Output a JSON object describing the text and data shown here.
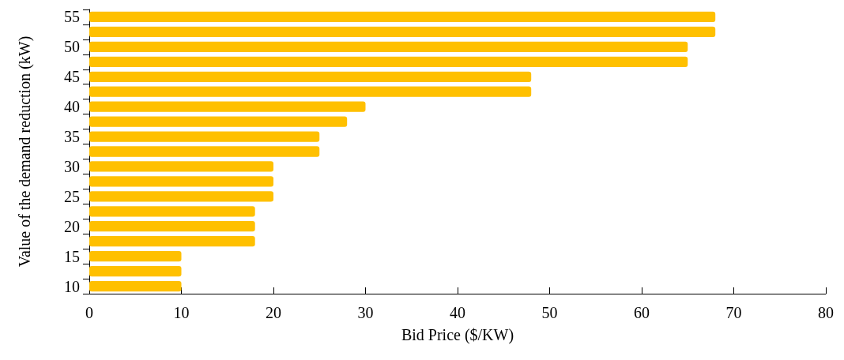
{
  "chart_data": {
    "type": "bar",
    "orientation": "horizontal",
    "xlabel": "Bid Price ($/KW)",
    "ylabel": "Value of the demand reduction (kW)",
    "categories": [
      "55",
      null,
      "50",
      null,
      "45",
      null,
      "40",
      null,
      "35",
      null,
      "30",
      null,
      "25",
      null,
      "20",
      null,
      "15",
      null,
      "10"
    ],
    "values": [
      68,
      68,
      65,
      65,
      48,
      48,
      30,
      28,
      25,
      25,
      20,
      20,
      20,
      18,
      18,
      18,
      10,
      10,
      10
    ],
    "color": "#ffc000",
    "xlim": [
      0,
      80
    ],
    "xticks": [
      0,
      10,
      20,
      30,
      40,
      50,
      60,
      70,
      80
    ]
  }
}
